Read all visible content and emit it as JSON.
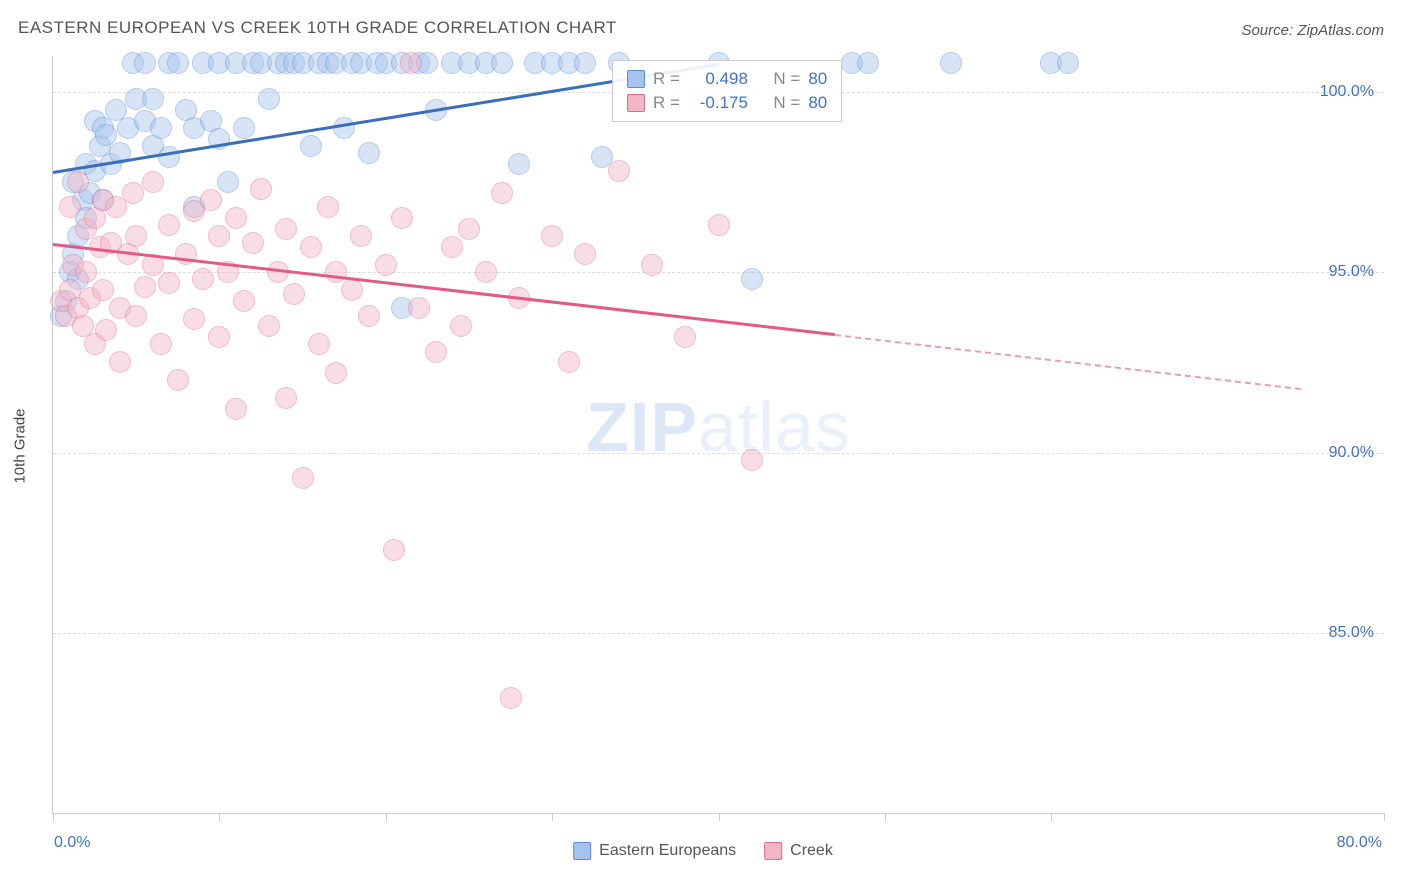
{
  "title": "EASTERN EUROPEAN VS CREEK 10TH GRADE CORRELATION CHART",
  "source": "Source: ZipAtlas.com",
  "watermark_zip": "ZIP",
  "watermark_atlas": "atlas",
  "ylabel": "10th Grade",
  "chart": {
    "type": "scatter",
    "xlim": [
      0,
      80
    ],
    "ylim": [
      80,
      101
    ],
    "x_min_label": "0.0%",
    "x_max_label": "80.0%",
    "y_ticks": [
      85,
      90,
      95,
      100
    ],
    "y_tick_labels": [
      "85.0%",
      "90.0%",
      "95.0%",
      "100.0%"
    ],
    "x_ticks": [
      0,
      10,
      20,
      30,
      40,
      50,
      60,
      80
    ],
    "background_color": "#ffffff",
    "grid_color": "#dddddd",
    "axis_color": "#cccccc",
    "label_color": "#4472c4",
    "marker_radius": 11,
    "marker_opacity": 0.45,
    "series": [
      {
        "name": "Eastern Europeans",
        "fill": "#a5c4ec",
        "stroke": "#5a8bd6",
        "r_value": "0.498",
        "n_value": "80",
        "trend": {
          "x1": 0,
          "y1": 97.8,
          "x2": 40,
          "y2": 100.8,
          "color": "#3b6fb9",
          "width": 3
        },
        "points": [
          [
            0.5,
            93.8
          ],
          [
            0.8,
            94.2
          ],
          [
            1.0,
            95.0
          ],
          [
            1.2,
            95.5
          ],
          [
            1.2,
            97.5
          ],
          [
            1.5,
            96.0
          ],
          [
            1.5,
            94.8
          ],
          [
            1.8,
            97.0
          ],
          [
            2.0,
            96.5
          ],
          [
            2.0,
            98.0
          ],
          [
            2.2,
            97.2
          ],
          [
            2.5,
            97.8
          ],
          [
            2.5,
            99.2
          ],
          [
            2.8,
            98.5
          ],
          [
            3.0,
            97.0
          ],
          [
            3.0,
            99.0
          ],
          [
            3.2,
            98.8
          ],
          [
            3.5,
            98.0
          ],
          [
            3.8,
            99.5
          ],
          [
            4.0,
            98.3
          ],
          [
            4.5,
            99.0
          ],
          [
            4.8,
            100.8
          ],
          [
            5.0,
            99.8
          ],
          [
            5.5,
            99.2
          ],
          [
            5.5,
            100.8
          ],
          [
            6.0,
            98.5
          ],
          [
            6.0,
            99.8
          ],
          [
            6.5,
            99.0
          ],
          [
            7.0,
            100.8
          ],
          [
            7.0,
            98.2
          ],
          [
            7.5,
            100.8
          ],
          [
            8.0,
            99.5
          ],
          [
            8.5,
            99.0
          ],
          [
            8.5,
            96.8
          ],
          [
            9.0,
            100.8
          ],
          [
            9.5,
            99.2
          ],
          [
            10.0,
            98.7
          ],
          [
            10.0,
            100.8
          ],
          [
            10.5,
            97.5
          ],
          [
            11.0,
            100.8
          ],
          [
            11.5,
            99.0
          ],
          [
            12.0,
            100.8
          ],
          [
            12.5,
            100.8
          ],
          [
            13.0,
            99.8
          ],
          [
            13.5,
            100.8
          ],
          [
            14.0,
            100.8
          ],
          [
            14.5,
            100.8
          ],
          [
            15.0,
            100.8
          ],
          [
            15.5,
            98.5
          ],
          [
            16.0,
            100.8
          ],
          [
            16.5,
            100.8
          ],
          [
            17.0,
            100.8
          ],
          [
            17.5,
            99.0
          ],
          [
            18.0,
            100.8
          ],
          [
            18.5,
            100.8
          ],
          [
            19.0,
            98.3
          ],
          [
            19.5,
            100.8
          ],
          [
            20.0,
            100.8
          ],
          [
            21.0,
            94.0
          ],
          [
            21.0,
            100.8
          ],
          [
            22.0,
            100.8
          ],
          [
            22.5,
            100.8
          ],
          [
            23.0,
            99.5
          ],
          [
            24.0,
            100.8
          ],
          [
            25.0,
            100.8
          ],
          [
            26.0,
            100.8
          ],
          [
            27.0,
            100.8
          ],
          [
            28.0,
            98.0
          ],
          [
            29.0,
            100.8
          ],
          [
            30.0,
            100.8
          ],
          [
            31.0,
            100.8
          ],
          [
            32.0,
            100.8
          ],
          [
            33.0,
            98.2
          ],
          [
            34.0,
            100.8
          ],
          [
            40.0,
            100.8
          ],
          [
            42.0,
            94.8
          ],
          [
            48.0,
            100.8
          ],
          [
            49.0,
            100.8
          ],
          [
            54.0,
            100.8
          ],
          [
            60.0,
            100.8
          ],
          [
            61.0,
            100.8
          ]
        ]
      },
      {
        "name": "Creek",
        "fill": "#f1b5c5",
        "stroke": "#de6b8e",
        "r_value": "-0.175",
        "n_value": "80",
        "trend_solid": {
          "x1": 0,
          "y1": 95.8,
          "x2": 47,
          "y2": 93.3,
          "color": "#e35a84",
          "width": 3
        },
        "trend_dash": {
          "x1": 47,
          "y1": 93.3,
          "x2": 75,
          "y2": 91.8,
          "color": "#e79fb6"
        },
        "points": [
          [
            0.5,
            94.2
          ],
          [
            0.8,
            93.8
          ],
          [
            1.0,
            94.5
          ],
          [
            1.0,
            96.8
          ],
          [
            1.2,
            95.2
          ],
          [
            1.5,
            94.0
          ],
          [
            1.5,
            97.5
          ],
          [
            1.8,
            93.5
          ],
          [
            2.0,
            95.0
          ],
          [
            2.0,
            96.2
          ],
          [
            2.2,
            94.3
          ],
          [
            2.5,
            96.5
          ],
          [
            2.5,
            93.0
          ],
          [
            2.8,
            95.7
          ],
          [
            3.0,
            97.0
          ],
          [
            3.0,
            94.5
          ],
          [
            3.2,
            93.4
          ],
          [
            3.5,
            95.8
          ],
          [
            3.8,
            96.8
          ],
          [
            4.0,
            94.0
          ],
          [
            4.0,
            92.5
          ],
          [
            4.5,
            95.5
          ],
          [
            4.8,
            97.2
          ],
          [
            5.0,
            93.8
          ],
          [
            5.0,
            96.0
          ],
          [
            5.5,
            94.6
          ],
          [
            6.0,
            95.2
          ],
          [
            6.0,
            97.5
          ],
          [
            6.5,
            93.0
          ],
          [
            7.0,
            96.3
          ],
          [
            7.0,
            94.7
          ],
          [
            7.5,
            92.0
          ],
          [
            8.0,
            95.5
          ],
          [
            8.5,
            96.7
          ],
          [
            8.5,
            93.7
          ],
          [
            9.0,
            94.8
          ],
          [
            9.5,
            97.0
          ],
          [
            10.0,
            96.0
          ],
          [
            10.0,
            93.2
          ],
          [
            10.5,
            95.0
          ],
          [
            11.0,
            91.2
          ],
          [
            11.0,
            96.5
          ],
          [
            11.5,
            94.2
          ],
          [
            12.0,
            95.8
          ],
          [
            12.5,
            97.3
          ],
          [
            13.0,
            93.5
          ],
          [
            13.5,
            95.0
          ],
          [
            14.0,
            91.5
          ],
          [
            14.0,
            96.2
          ],
          [
            14.5,
            94.4
          ],
          [
            15.0,
            89.3
          ],
          [
            15.5,
            95.7
          ],
          [
            16.0,
            93.0
          ],
          [
            16.5,
            96.8
          ],
          [
            17.0,
            95.0
          ],
          [
            17.0,
            92.2
          ],
          [
            18.0,
            94.5
          ],
          [
            18.5,
            96.0
          ],
          [
            19.0,
            93.8
          ],
          [
            20.0,
            95.2
          ],
          [
            20.5,
            87.3
          ],
          [
            21.0,
            96.5
          ],
          [
            21.5,
            100.8
          ],
          [
            22.0,
            94.0
          ],
          [
            23.0,
            92.8
          ],
          [
            24.0,
            95.7
          ],
          [
            24.5,
            93.5
          ],
          [
            25.0,
            96.2
          ],
          [
            26.0,
            95.0
          ],
          [
            27.0,
            97.2
          ],
          [
            27.5,
            83.2
          ],
          [
            28.0,
            94.3
          ],
          [
            30.0,
            96.0
          ],
          [
            31.0,
            92.5
          ],
          [
            32.0,
            95.5
          ],
          [
            34.0,
            97.8
          ],
          [
            36.0,
            95.2
          ],
          [
            38.0,
            93.2
          ],
          [
            40.0,
            96.3
          ],
          [
            42.0,
            89.8
          ]
        ]
      }
    ],
    "legend_labels": [
      "Eastern Europeans",
      "Creek"
    ],
    "stats_labels": {
      "r": "R =",
      "n": "N ="
    }
  }
}
